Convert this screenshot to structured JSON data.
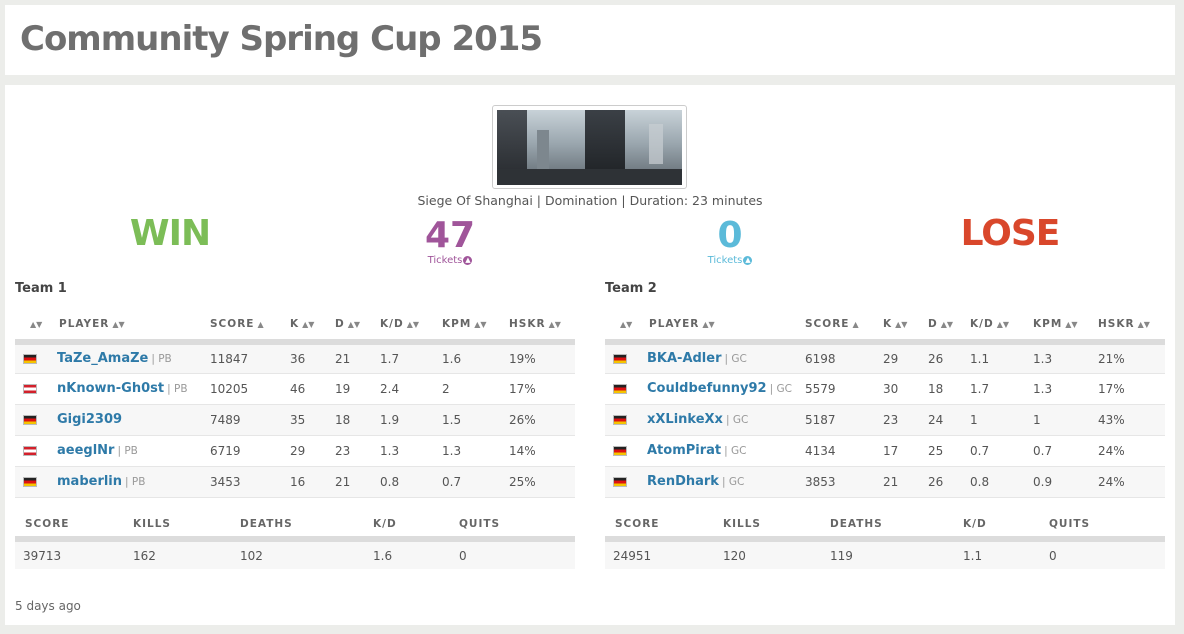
{
  "page": {
    "title": "Community Spring Cup 2015"
  },
  "match": {
    "info": "Siege Of Shanghai | Domination | Duration: 23 minutes",
    "result_left": "WIN",
    "result_right": "LOSE",
    "tickets_left": "47",
    "tickets_right": "0",
    "tickets_label": "Tickets",
    "time_ago": "5 days ago"
  },
  "columns": {
    "player": "PLAYER",
    "score": "SCORE",
    "k": "K",
    "d": "D",
    "kd": "K/D",
    "kpm": "KPM",
    "hskr": "HSKR"
  },
  "summary_columns": {
    "score": "SCORE",
    "kills": "KILLS",
    "deaths": "DEATHS",
    "kd": "K/D",
    "quits": "QUITS"
  },
  "team1": {
    "name": "Team 1",
    "players": [
      {
        "flag": "de",
        "name": "TaZe_AmaZe",
        "platform": "| PB",
        "score": "11847",
        "k": "36",
        "d": "21",
        "kd": "1.7",
        "kpm": "1.6",
        "hskr": "19%"
      },
      {
        "flag": "at",
        "name": "nKnown-Gh0st",
        "platform": "| PB",
        "score": "10205",
        "k": "46",
        "d": "19",
        "kd": "2.4",
        "kpm": "2",
        "hskr": "17%"
      },
      {
        "flag": "de",
        "name": "Gigi2309",
        "platform": "",
        "score": "7489",
        "k": "35",
        "d": "18",
        "kd": "1.9",
        "kpm": "1.5",
        "hskr": "26%"
      },
      {
        "flag": "at",
        "name": "aeeglNr",
        "platform": "| PB",
        "score": "6719",
        "k": "29",
        "d": "23",
        "kd": "1.3",
        "kpm": "1.3",
        "hskr": "14%"
      },
      {
        "flag": "de",
        "name": "maberlin",
        "platform": "| PB",
        "score": "3453",
        "k": "16",
        "d": "21",
        "kd": "0.8",
        "kpm": "0.7",
        "hskr": "25%"
      }
    ],
    "summary": {
      "score": "39713",
      "kills": "162",
      "deaths": "102",
      "kd": "1.6",
      "quits": "0"
    }
  },
  "team2": {
    "name": "Team 2",
    "players": [
      {
        "flag": "de",
        "name": "BKA-Adler",
        "platform": "| GC",
        "score": "6198",
        "k": "29",
        "d": "26",
        "kd": "1.1",
        "kpm": "1.3",
        "hskr": "21%"
      },
      {
        "flag": "de",
        "name": "Couldbefunny92",
        "platform": "| GC",
        "score": "5579",
        "k": "30",
        "d": "18",
        "kd": "1.7",
        "kpm": "1.3",
        "hskr": "17%"
      },
      {
        "flag": "de",
        "name": "xXLinkeXx",
        "platform": "| GC",
        "score": "5187",
        "k": "23",
        "d": "24",
        "kd": "1",
        "kpm": "1",
        "hskr": "43%"
      },
      {
        "flag": "de",
        "name": "AtomPirat",
        "platform": "| GC",
        "score": "4134",
        "k": "17",
        "d": "25",
        "kd": "0.7",
        "kpm": "0.7",
        "hskr": "24%"
      },
      {
        "flag": "de",
        "name": "RenDhark",
        "platform": "| GC",
        "score": "3853",
        "k": "21",
        "d": "26",
        "kd": "0.8",
        "kpm": "0.9",
        "hskr": "24%"
      }
    ],
    "summary": {
      "score": "24951",
      "kills": "120",
      "deaths": "119",
      "kd": "1.1",
      "quits": "0"
    }
  },
  "colors": {
    "win": "#7cbd57",
    "lose": "#d9472b",
    "tickets_left": "#a0559a",
    "tickets_right": "#5bbad9",
    "link": "#2e7aa8"
  }
}
